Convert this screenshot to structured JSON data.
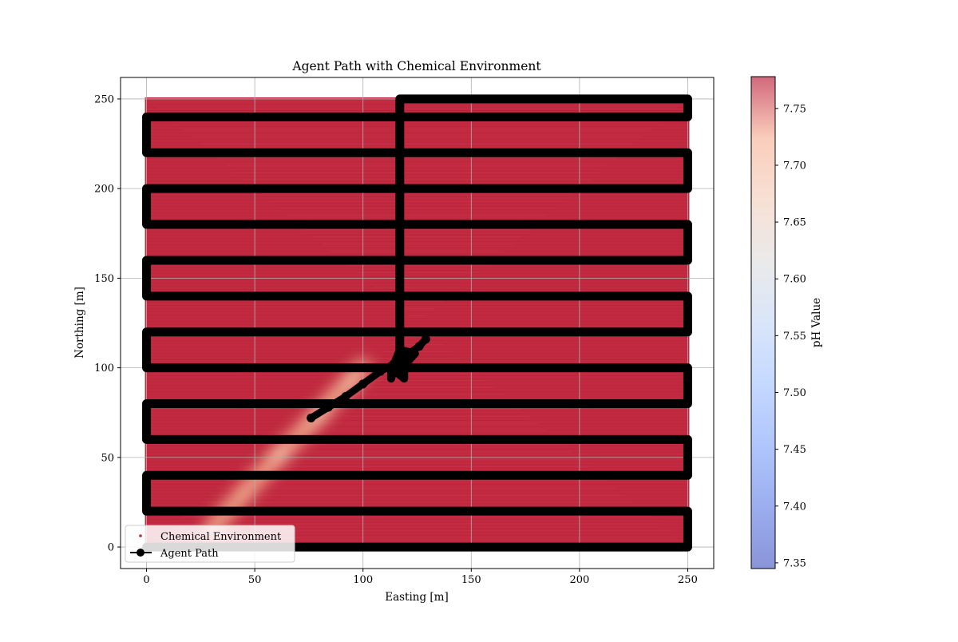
{
  "chart_data": {
    "type": "scatter",
    "title": "Agent Path with Chemical Environment",
    "xlabel": "Easting [m]",
    "ylabel": "Northing [m]",
    "xlim": [
      -12,
      262
    ],
    "ylim": [
      -12,
      262
    ],
    "xticks": [
      0,
      50,
      100,
      150,
      200,
      250
    ],
    "yticks": [
      0,
      50,
      100,
      150,
      200,
      250
    ],
    "grid": true,
    "legend_position": "lower-left",
    "colorbar": {
      "label": "pH Value",
      "range": [
        7.345,
        7.778
      ],
      "ticks": [
        7.35,
        7.4,
        7.45,
        7.5,
        7.55,
        7.6,
        7.65,
        7.7,
        7.75
      ],
      "tick_labels": [
        "7.35",
        "7.40",
        "7.45",
        "7.50",
        "7.55",
        "7.60",
        "7.65",
        "7.70",
        "7.75"
      ],
      "colormap": "coolwarm"
    },
    "environment": {
      "name": "Chemical Environment",
      "x_range": [
        0,
        250
      ],
      "y_range": [
        0,
        250
      ],
      "background_ph": 7.775,
      "color": "#c0283f",
      "plume_center": [
        [
          30,
          10
        ],
        [
          45,
          30
        ],
        [
          60,
          50
        ],
        [
          75,
          68
        ],
        [
          88,
          85
        ],
        [
          100,
          100
        ]
      ],
      "plume_min_ph": 7.63
    },
    "agent_path": {
      "name": "Agent Path",
      "color": "#000000",
      "lawnmower": [
        [
          0,
          0
        ],
        [
          250,
          0
        ],
        [
          250,
          20
        ],
        [
          0,
          20
        ],
        [
          0,
          40
        ],
        [
          250,
          40
        ],
        [
          250,
          60
        ],
        [
          0,
          60
        ],
        [
          0,
          80
        ],
        [
          250,
          80
        ],
        [
          250,
          100
        ],
        [
          0,
          100
        ],
        [
          0,
          120
        ],
        [
          250,
          120
        ],
        [
          250,
          140
        ],
        [
          0,
          140
        ],
        [
          0,
          160
        ],
        [
          250,
          160
        ],
        [
          250,
          180
        ],
        [
          0,
          180
        ],
        [
          0,
          200
        ],
        [
          250,
          200
        ],
        [
          250,
          220
        ],
        [
          0,
          220
        ],
        [
          0,
          240
        ],
        [
          250,
          240
        ],
        [
          250,
          250
        ],
        [
          117,
          250
        ],
        [
          117,
          105
        ]
      ],
      "diagonal": [
        [
          76,
          72
        ],
        [
          84,
          78
        ],
        [
          92,
          84
        ],
        [
          100,
          91
        ],
        [
          108,
          98
        ],
        [
          114,
          102
        ],
        [
          120,
          107
        ],
        [
          126,
          112
        ],
        [
          129,
          116
        ]
      ],
      "cluster": [
        [
          113,
          94
        ],
        [
          113,
          100
        ],
        [
          119,
          94
        ],
        [
          119,
          100
        ],
        [
          121,
          104
        ],
        [
          124,
          108
        ],
        [
          117,
          110
        ],
        [
          115,
          104
        ]
      ]
    }
  }
}
